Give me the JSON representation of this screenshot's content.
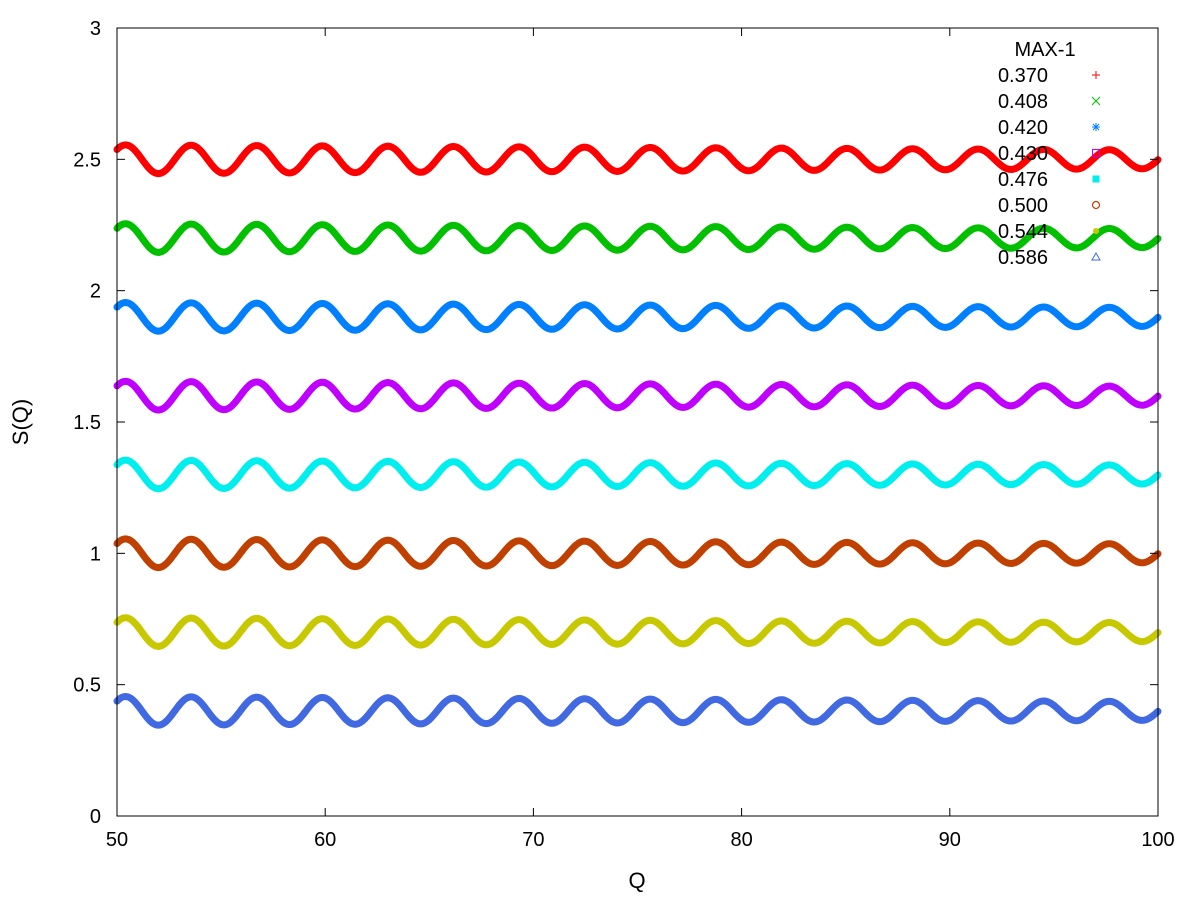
{
  "chart_data": {
    "type": "line",
    "title": "",
    "xlabel": "Q",
    "ylabel": "S(Q)",
    "xlim": [
      50,
      100
    ],
    "ylim": [
      0,
      3
    ],
    "xticks": [
      "50",
      "60",
      "70",
      "80",
      "90",
      "100"
    ],
    "yticks": [
      "0",
      "0.5",
      "1",
      "1.5",
      "2",
      "2.5",
      "3"
    ],
    "grid": false,
    "legend_placement": "top-right",
    "legend_title": "MAX-1",
    "x": [
      50,
      51,
      52,
      53,
      54,
      55,
      56,
      57,
      58,
      59,
      60,
      61,
      62,
      63,
      64,
      65,
      66,
      67,
      68,
      69,
      70,
      71,
      72,
      73,
      74,
      75,
      76,
      77,
      78,
      79,
      80,
      81,
      82,
      83,
      84,
      85,
      86,
      87,
      88,
      89,
      90,
      91,
      92,
      93,
      94,
      95,
      96,
      97,
      98,
      99,
      100
    ],
    "series": [
      {
        "name": "0.370",
        "color": "#ff0000",
        "marker": "+",
        "baseline": 2.5,
        "amplitude": 0.055,
        "period": 3.15,
        "phase": 0.75
      },
      {
        "name": "0.408",
        "color": "#00c000",
        "marker": "x",
        "baseline": 2.2,
        "amplitude": 0.055,
        "period": 3.15,
        "phase": 0.75
      },
      {
        "name": "0.420",
        "color": "#0080ff",
        "marker": "*",
        "baseline": 1.9,
        "amplitude": 0.055,
        "period": 3.15,
        "phase": 0.75
      },
      {
        "name": "0.430",
        "color": "#c000ff",
        "marker": "open-square",
        "baseline": 1.6,
        "amplitude": 0.055,
        "period": 3.15,
        "phase": 0.75
      },
      {
        "name": "0.476",
        "color": "#00eeee",
        "marker": "filled-square",
        "baseline": 1.3,
        "amplitude": 0.055,
        "period": 3.15,
        "phase": 0.75
      },
      {
        "name": "0.500",
        "color": "#c04000",
        "marker": "open-circle",
        "baseline": 1.0,
        "amplitude": 0.055,
        "period": 3.15,
        "phase": 0.75
      },
      {
        "name": "0.544",
        "color": "#c8c800",
        "marker": "filled-circle",
        "baseline": 0.7,
        "amplitude": 0.055,
        "period": 3.15,
        "phase": 0.75
      },
      {
        "name": "0.586",
        "color": "#4169e1",
        "marker": "open-triangle",
        "baseline": 0.4,
        "amplitude": 0.055,
        "period": 3.15,
        "phase": 0.75
      }
    ]
  }
}
